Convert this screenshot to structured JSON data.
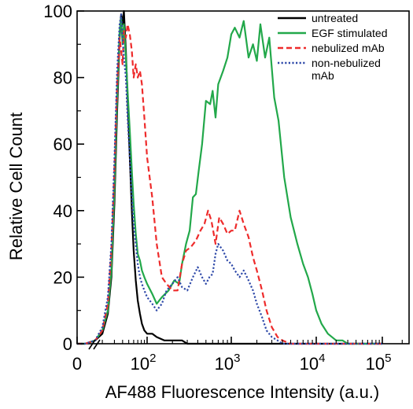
{
  "chart_data": {
    "type": "line",
    "title": "",
    "xlabel": "AF488 Fluorescence Intensity (a.u.)",
    "ylabel": "Relative Cell Count",
    "xscale": "symlog",
    "xlim": [
      0,
      300000
    ],
    "ylim": [
      0,
      100
    ],
    "x_tick_labels": [
      {
        "base": "0",
        "exp": ""
      },
      {
        "base": "10",
        "exp": "2"
      },
      {
        "base": "10",
        "exp": "3"
      },
      {
        "base": "10",
        "exp": "4"
      },
      {
        "base": "10",
        "exp": "5"
      }
    ],
    "y_tick_labels": [
      "0",
      "20",
      "40",
      "60",
      "80",
      "100"
    ],
    "legend_position": "top-right",
    "legend": [
      {
        "label_lines": [
          "untreated"
        ],
        "color": "#000000",
        "dash": "solid"
      },
      {
        "label_lines": [
          "EGF stimulated"
        ],
        "color": "#22a84a",
        "dash": "solid"
      },
      {
        "label_lines": [
          "nebulized mAb"
        ],
        "color": "#ee2b2b",
        "dash": "dashed"
      },
      {
        "label_lines": [
          "non-nebulized",
          "mAb"
        ],
        "color": "#2d48a8",
        "dash": "dotted"
      }
    ],
    "series": [
      {
        "name": "untreated",
        "color": "#000000",
        "dash": "solid",
        "points": [
          [
            0,
            0
          ],
          [
            12,
            0
          ],
          [
            16,
            1
          ],
          [
            20,
            3
          ],
          [
            24,
            9
          ],
          [
            27,
            20
          ],
          [
            30,
            42
          ],
          [
            33,
            70
          ],
          [
            36,
            92
          ],
          [
            38,
            99
          ],
          [
            40,
            96
          ],
          [
            42,
            100
          ],
          [
            45,
            88
          ],
          [
            48,
            74
          ],
          [
            52,
            56
          ],
          [
            56,
            40
          ],
          [
            60,
            28
          ],
          [
            65,
            19
          ],
          [
            70,
            13
          ],
          [
            76,
            9
          ],
          [
            82,
            6
          ],
          [
            90,
            4
          ],
          [
            100,
            3
          ],
          [
            115,
            3
          ],
          [
            130,
            2
          ],
          [
            160,
            1
          ],
          [
            200,
            1
          ],
          [
            260,
            1
          ],
          [
            300,
            0
          ],
          [
            500,
            0
          ],
          [
            100000,
            0
          ]
        ]
      },
      {
        "name": "EGF stimulated",
        "color": "#22a84a",
        "dash": "solid",
        "points": [
          [
            0,
            0
          ],
          [
            12,
            0
          ],
          [
            16,
            1
          ],
          [
            20,
            4
          ],
          [
            24,
            10
          ],
          [
            27,
            22
          ],
          [
            30,
            46
          ],
          [
            33,
            74
          ],
          [
            36,
            94
          ],
          [
            38,
            98
          ],
          [
            40,
            90
          ],
          [
            42,
            96
          ],
          [
            45,
            86
          ],
          [
            48,
            76
          ],
          [
            52,
            64
          ],
          [
            56,
            52
          ],
          [
            60,
            42
          ],
          [
            65,
            33
          ],
          [
            70,
            27
          ],
          [
            76,
            25
          ],
          [
            82,
            22
          ],
          [
            90,
            20
          ],
          [
            100,
            18
          ],
          [
            115,
            15
          ],
          [
            130,
            12
          ],
          [
            150,
            14
          ],
          [
            180,
            16
          ],
          [
            210,
            19
          ],
          [
            240,
            18
          ],
          [
            260,
            24
          ],
          [
            290,
            30
          ],
          [
            320,
            34
          ],
          [
            350,
            44
          ],
          [
            380,
            45
          ],
          [
            410,
            52
          ],
          [
            450,
            60
          ],
          [
            500,
            73
          ],
          [
            560,
            72
          ],
          [
            600,
            76
          ],
          [
            650,
            68
          ],
          [
            700,
            78
          ],
          [
            800,
            82
          ],
          [
            900,
            86
          ],
          [
            1000,
            93
          ],
          [
            1100,
            95
          ],
          [
            1250,
            92
          ],
          [
            1400,
            97
          ],
          [
            1600,
            86
          ],
          [
            1800,
            90
          ],
          [
            2000,
            85
          ],
          [
            2200,
            96
          ],
          [
            2500,
            86
          ],
          [
            2800,
            92
          ],
          [
            3200,
            74
          ],
          [
            3600,
            67
          ],
          [
            4200,
            50
          ],
          [
            5000,
            38
          ],
          [
            6000,
            30
          ],
          [
            7000,
            24
          ],
          [
            8000,
            20
          ],
          [
            9000,
            15
          ],
          [
            10000,
            10
          ],
          [
            12000,
            6
          ],
          [
            15000,
            3
          ],
          [
            20000,
            1
          ],
          [
            25000,
            1
          ],
          [
            30000,
            0
          ],
          [
            100000,
            0
          ]
        ]
      },
      {
        "name": "nebulized mAb",
        "color": "#ee2b2b",
        "dash": "dashed",
        "points": [
          [
            0,
            0
          ],
          [
            12,
            0
          ],
          [
            16,
            1
          ],
          [
            20,
            4
          ],
          [
            24,
            12
          ],
          [
            27,
            28
          ],
          [
            30,
            52
          ],
          [
            33,
            78
          ],
          [
            36,
            92
          ],
          [
            38,
            88
          ],
          [
            40,
            84
          ],
          [
            42,
            94
          ],
          [
            45,
            92
          ],
          [
            48,
            96
          ],
          [
            52,
            93
          ],
          [
            56,
            88
          ],
          [
            60,
            80
          ],
          [
            65,
            84
          ],
          [
            70,
            80
          ],
          [
            76,
            82
          ],
          [
            82,
            78
          ],
          [
            90,
            68
          ],
          [
            100,
            56
          ],
          [
            115,
            44
          ],
          [
            130,
            30
          ],
          [
            150,
            20
          ],
          [
            170,
            18
          ],
          [
            200,
            16
          ],
          [
            230,
            16
          ],
          [
            260,
            24
          ],
          [
            290,
            28
          ],
          [
            330,
            29
          ],
          [
            380,
            31
          ],
          [
            430,
            34
          ],
          [
            480,
            36
          ],
          [
            530,
            40
          ],
          [
            580,
            37
          ],
          [
            650,
            30
          ],
          [
            720,
            38
          ],
          [
            800,
            36
          ],
          [
            900,
            33
          ],
          [
            1000,
            34
          ],
          [
            1100,
            34
          ],
          [
            1250,
            40
          ],
          [
            1400,
            36
          ],
          [
            1600,
            32
          ],
          [
            1800,
            26
          ],
          [
            2000,
            22
          ],
          [
            2300,
            16
          ],
          [
            2600,
            10
          ],
          [
            3000,
            5
          ],
          [
            3500,
            2
          ],
          [
            4000,
            1
          ],
          [
            5000,
            0
          ],
          [
            100000,
            0
          ]
        ]
      },
      {
        "name": "non-nebulized mAb",
        "color": "#2d48a8",
        "dash": "dotted",
        "points": [
          [
            0,
            0
          ],
          [
            12,
            0
          ],
          [
            16,
            1
          ],
          [
            20,
            5
          ],
          [
            24,
            14
          ],
          [
            27,
            30
          ],
          [
            30,
            55
          ],
          [
            33,
            82
          ],
          [
            36,
            96
          ],
          [
            38,
            99
          ],
          [
            40,
            92
          ],
          [
            42,
            86
          ],
          [
            45,
            80
          ],
          [
            48,
            68
          ],
          [
            52,
            56
          ],
          [
            56,
            44
          ],
          [
            60,
            36
          ],
          [
            65,
            30
          ],
          [
            70,
            24
          ],
          [
            76,
            20
          ],
          [
            82,
            18
          ],
          [
            90,
            16
          ],
          [
            100,
            14
          ],
          [
            115,
            12
          ],
          [
            130,
            10
          ],
          [
            150,
            12
          ],
          [
            170,
            16
          ],
          [
            200,
            18
          ],
          [
            230,
            20
          ],
          [
            260,
            17
          ],
          [
            300,
            16
          ],
          [
            350,
            20
          ],
          [
            400,
            23
          ],
          [
            450,
            20
          ],
          [
            500,
            18
          ],
          [
            550,
            20
          ],
          [
            600,
            21
          ],
          [
            650,
            27
          ],
          [
            700,
            30
          ],
          [
            800,
            28
          ],
          [
            900,
            25
          ],
          [
            1000,
            24
          ],
          [
            1100,
            22
          ],
          [
            1250,
            20
          ],
          [
            1400,
            22
          ],
          [
            1600,
            19
          ],
          [
            1800,
            16
          ],
          [
            2000,
            12
          ],
          [
            2300,
            8
          ],
          [
            2600,
            4
          ],
          [
            3000,
            2
          ],
          [
            3500,
            1
          ],
          [
            4000,
            0
          ],
          [
            100000,
            0
          ]
        ]
      }
    ]
  }
}
